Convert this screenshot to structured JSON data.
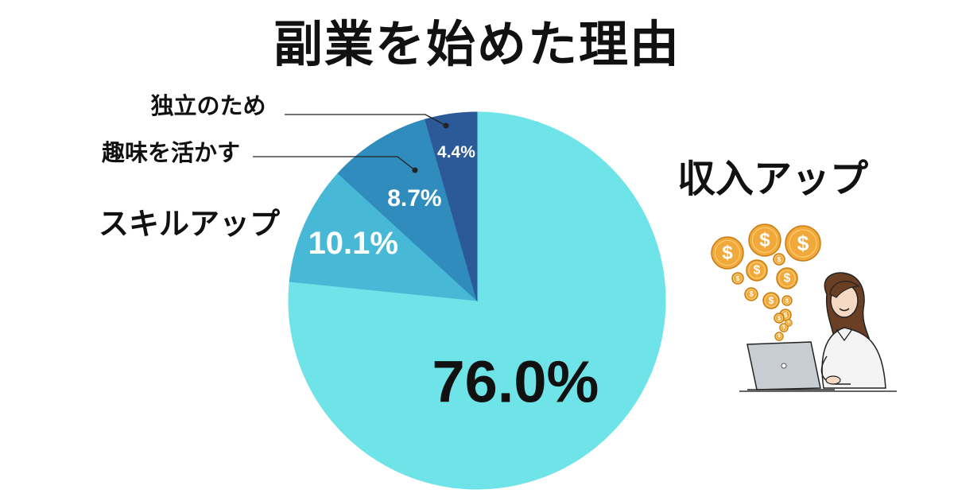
{
  "chart_data": {
    "type": "pie",
    "title": "副業を始めた理由",
    "start_angle_deg": 0,
    "direction": "clockwise",
    "slices": [
      {
        "label": "収入アップ",
        "value": 76.0,
        "display": "76.0%",
        "color": "#6ee3e8"
      },
      {
        "label": "スキルアップ",
        "value": 10.1,
        "display": "10.1%",
        "color": "#47b9d6"
      },
      {
        "label": "趣味を活かす",
        "value": 8.7,
        "display": "8.7%",
        "color": "#2f8cbd"
      },
      {
        "label": "独立のため",
        "value": 4.4,
        "display": "4.4%",
        "color": "#2c5a98"
      }
    ],
    "label_color_on_dark": "#ffffff",
    "label_color_on_light": "#111111"
  },
  "illustration": {
    "icon": "woman-laptop-coins-illustration",
    "coin_symbol": "$",
    "coin_color": "#f2a93b"
  }
}
